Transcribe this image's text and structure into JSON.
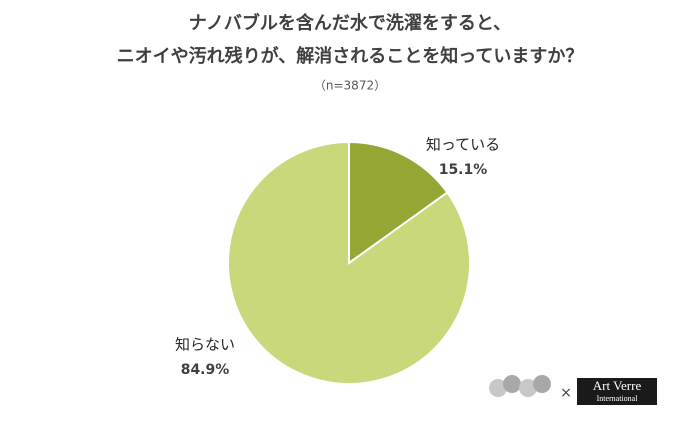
{
  "chart_data": {
    "type": "pie",
    "title": [
      "ナノバブルを含んだ水で洗濯をすると、",
      "ニオイや汚れ残りが、解消されることを知っていますか？"
    ],
    "subtitle": "（n=3872）",
    "categories": [
      "知っている",
      "知らない"
    ],
    "values": [
      15.1,
      84.9
    ],
    "value_labels": [
      "15.1%",
      "84.9%"
    ],
    "colors": [
      "#95a634",
      "#c9d87a"
    ]
  },
  "footer": {
    "separator": "×",
    "brand": "Art Verre",
    "brand_sub": "International"
  }
}
